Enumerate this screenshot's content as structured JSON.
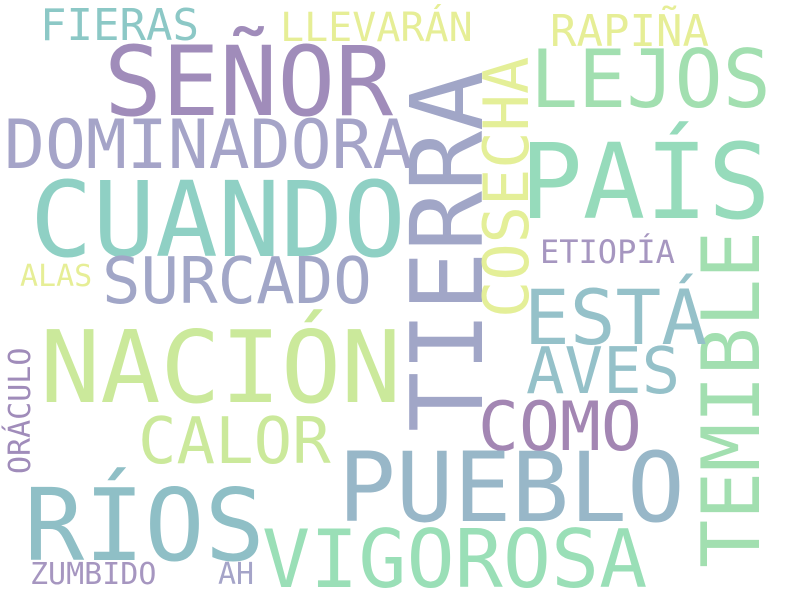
{
  "background": "#ffffff",
  "words": [
    {
      "text": "FIERAS",
      "color": "#8cc8c6"
    },
    {
      "text": "LLEVARÁN",
      "color": "#e6ee96"
    },
    {
      "text": "RAPIÑA",
      "color": "#e6ee96"
    },
    {
      "text": "SEÑOR",
      "color": "#a08cba"
    },
    {
      "text": "LEJOS",
      "color": "#a2dfb0"
    },
    {
      "text": "DOMINADORA",
      "color": "#a5a4c8"
    },
    {
      "text": "TIERRA",
      "color": "#a1a6c7"
    },
    {
      "text": "COSECHA",
      "color": "#e4ef98"
    },
    {
      "text": "PAÍS",
      "color": "#96dbbb"
    },
    {
      "text": "CUANDO",
      "color": "#8fd0c4"
    },
    {
      "text": "ETIOPÍA",
      "color": "#a696c0"
    },
    {
      "text": "ALAS",
      "color": "#e6ee96"
    },
    {
      "text": "SURCADO",
      "color": "#a1a6c7"
    },
    {
      "text": "TEMIBLE",
      "color": "#a2dfb0"
    },
    {
      "text": "ESTÁ",
      "color": "#95c1c9"
    },
    {
      "text": "NACIÓN",
      "color": "#cbe99b"
    },
    {
      "text": "AVES",
      "color": "#95c1c9"
    },
    {
      "text": "ORÁCULO",
      "color": "#a08cba"
    },
    {
      "text": "COMO",
      "color": "#a386b3"
    },
    {
      "text": "CALOR",
      "color": "#cbe99b"
    },
    {
      "text": "PUEBLO",
      "color": "#98b7c8"
    },
    {
      "text": "RÍOS",
      "color": "#8fbfc6"
    },
    {
      "text": "VIGOROSA",
      "color": "#9adfb7"
    },
    {
      "text": "ZUMBIDO",
      "color": "#a696c0"
    },
    {
      "text": "AH",
      "color": "#a5a4c8"
    }
  ]
}
